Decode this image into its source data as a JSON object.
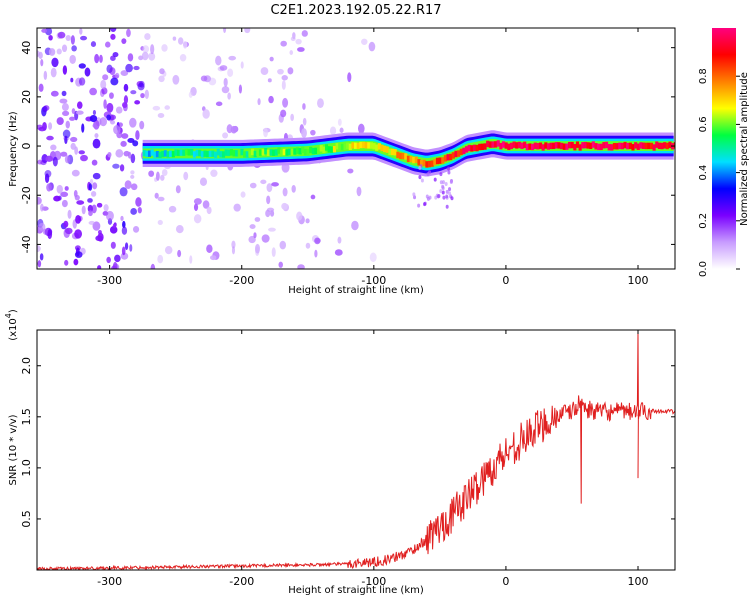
{
  "chart_data": [
    {
      "type": "heatmap",
      "title": "C2E1.2023.192.05.22.R17",
      "xlabel": "Height of straight line (km)",
      "ylabel": "Frequency (Hz)",
      "xlim": [
        -355,
        128
      ],
      "ylim": [
        -50,
        48
      ],
      "x_ticks": [
        -300,
        -200,
        -100,
        0,
        100
      ],
      "x_tick_labels": [
        "-300",
        "-200",
        "-100",
        "0",
        "100"
      ],
      "y_ticks": [
        -40,
        -20,
        0,
        20,
        40
      ],
      "y_tick_labels": [
        "-40",
        "-20",
        "0",
        "20",
        "40"
      ],
      "colorbar": {
        "label": "Normalized spectral amplitude",
        "range": [
          0,
          1
        ],
        "ticks": [
          0.0,
          0.2,
          0.4,
          0.6,
          0.8
        ],
        "tick_labels": [
          "0.0",
          "0.2",
          "0.4",
          "0.6",
          "0.8"
        ],
        "colors": [
          "#ffffff",
          "#c89cff",
          "#7a00ff",
          "#0000ff",
          "#00e0ff",
          "#00ff40",
          "#ffff00",
          "#ff8000",
          "#ff0000",
          "#ff007f"
        ]
      },
      "ridge": {
        "x": [
          -275,
          -250,
          -200,
          -150,
          -120,
          -100,
          -90,
          -80,
          -70,
          -60,
          -50,
          -40,
          -30,
          -20,
          -10,
          0,
          50,
          100,
          128
        ],
        "y": [
          -3,
          -3,
          -3,
          -2,
          0,
          0,
          -2,
          -4,
          -6,
          -7,
          -6,
          -4,
          -1,
          0,
          1,
          0,
          0,
          0,
          0
        ],
        "amplitude": [
          0.45,
          0.5,
          0.55,
          0.6,
          0.65,
          0.7,
          0.7,
          0.75,
          0.75,
          0.8,
          0.85,
          0.9,
          0.92,
          0.95,
          0.98,
          0.95,
          0.95,
          0.93,
          0.92
        ]
      },
      "noise_region_x": [
        -355,
        -275
      ]
    },
    {
      "type": "line",
      "xlabel": "Height of straight line (km)",
      "ylabel": "SNR (10 * v/v)",
      "scale_label": "(x10",
      "scale_exp": "4",
      "scale_close": ")",
      "xlim": [
        -355,
        128
      ],
      "ylim": [
        0,
        2.35
      ],
      "x_ticks": [
        -300,
        -200,
        -100,
        0,
        100
      ],
      "x_tick_labels": [
        "-300",
        "-200",
        "-100",
        "0",
        "100"
      ],
      "y_ticks": [
        0.5,
        1.0,
        1.5,
        2.0
      ],
      "y_tick_labels": [
        "0.5",
        "1.0",
        "1.5",
        "2.0"
      ],
      "color": "#e02020",
      "series": [
        {
          "x": [
            -355,
            -300,
            -250,
            -200,
            -150,
            -120,
            -110,
            -100,
            -90,
            -80,
            -70,
            -60,
            -50,
            -40,
            -30,
            -20,
            -10,
            0,
            10,
            20,
            30,
            40,
            50,
            57,
            60,
            70,
            80,
            90,
            100,
            110,
            128
          ],
          "values": [
            0.01,
            0.02,
            0.03,
            0.04,
            0.05,
            0.06,
            0.07,
            0.08,
            0.1,
            0.14,
            0.2,
            0.3,
            0.42,
            0.55,
            0.7,
            0.85,
            1.0,
            1.15,
            1.25,
            1.35,
            1.45,
            1.52,
            1.55,
            1.65,
            1.58,
            1.55,
            1.55,
            1.55,
            1.55,
            1.56,
            1.55
          ]
        }
      ],
      "spikes": [
        {
          "x": 57,
          "y": 0.65
        },
        {
          "x": 100,
          "y": 0.9
        },
        {
          "x": 100,
          "y": 2.35
        }
      ]
    }
  ]
}
